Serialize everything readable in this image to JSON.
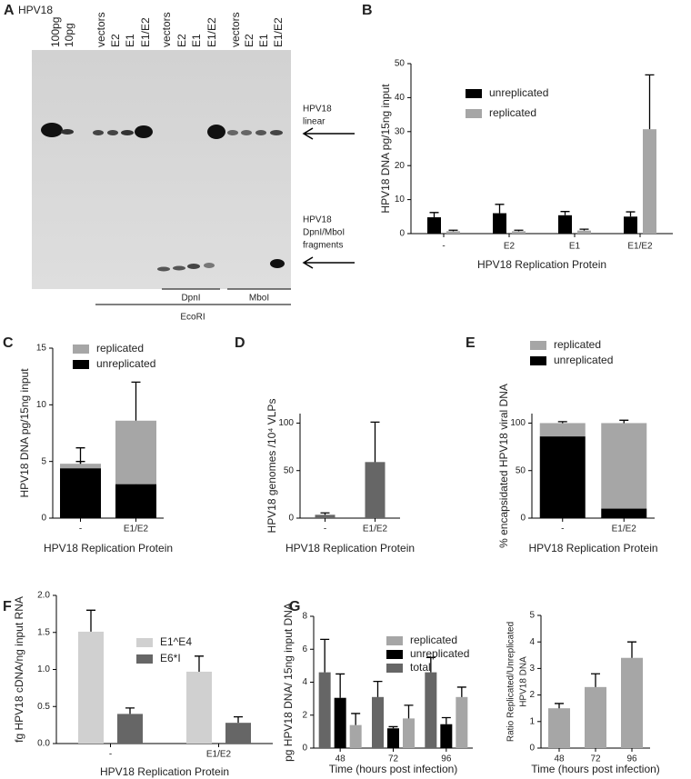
{
  "gel": {
    "panel_label": "A",
    "title": "HPV18",
    "lanes": [
      "100pg",
      "10pg",
      "vectors",
      "E2",
      "E1",
      "E1/E2",
      "vectors",
      "E2",
      "E1",
      "E1/E2",
      "vectors",
      "E2",
      "E1",
      "E1/E2"
    ],
    "digests": [
      "EcoRI",
      "DpnI",
      "MboI"
    ],
    "annotations": [
      [
        "HPV18",
        "linear"
      ],
      [
        "HPV18",
        "DpnI/MboI",
        "fragments"
      ]
    ]
  },
  "chart_data": [
    {
      "panel_label": "B",
      "type": "bar",
      "y_label": "HPV18 DNA pg/15ng input",
      "x_label": "HPV18 Replication Protein",
      "categories": [
        "-",
        "E2",
        "E1",
        "E1/E2"
      ],
      "series": [
        {
          "name": "unreplicated",
          "color": "#000000",
          "values": [
            4.8,
            6.0,
            5.4,
            5.0
          ],
          "errors": [
            1.4,
            2.6,
            1.1,
            1.4
          ]
        },
        {
          "name": "replicated",
          "color": "#a6a6a6",
          "values": [
            0.7,
            0.7,
            0.9,
            30.7
          ],
          "errors": [
            0.3,
            0.3,
            0.4,
            16
          ]
        }
      ],
      "ylim": [
        0,
        50
      ],
      "yticks": [
        0,
        10,
        20,
        30,
        40,
        50
      ]
    },
    {
      "panel_label": "C",
      "type": "bar",
      "stacked": true,
      "legend_reversed": true,
      "y_label": "HPV18 DNA pg/15ng input",
      "x_label": "HPV18 Replication Protein",
      "categories": [
        "-",
        "E1/E2"
      ],
      "series": [
        {
          "name": "unreplicated",
          "color": "#000000",
          "values": [
            4.4,
            3.0
          ],
          "errors": [
            0.6,
            1.1
          ]
        },
        {
          "name": "replicated",
          "color": "#a6a6a6",
          "values": [
            0.4,
            5.6
          ],
          "errors": [
            1.4,
            3.4
          ]
        }
      ],
      "ylim": [
        0,
        15
      ],
      "yticks": [
        0,
        5,
        10,
        15
      ]
    },
    {
      "panel_label": "D",
      "type": "bar",
      "y_label": "HPV18 genomes /10⁴ VLPs",
      "x_label": "HPV18 Replication Protein",
      "categories": [
        "-",
        "E1/E2"
      ],
      "values": [
        3.5,
        59
      ],
      "errors": [
        2,
        42
      ],
      "color": "#666666",
      "ylim": [
        0,
        110
      ],
      "yticks": [
        0,
        50,
        100
      ]
    },
    {
      "panel_label": "E",
      "type": "bar",
      "stacked": true,
      "legend_reversed": true,
      "y_label": "% encapsidated HPV18 viral DNA",
      "x_label": "HPV18 Replication Protein",
      "categories": [
        "-",
        "E1/E2"
      ],
      "series": [
        {
          "name": "unreplicated",
          "color": "#000000",
          "values": [
            86,
            10
          ],
          "errors": [
            2,
            3
          ]
        },
        {
          "name": "replicated",
          "color": "#a6a6a6",
          "values": [
            14,
            90
          ],
          "errors": [
            1.5,
            3
          ]
        }
      ],
      "ylim": [
        0,
        110
      ],
      "yticks": [
        0,
        50,
        100
      ]
    },
    {
      "panel_label": "F",
      "type": "bar",
      "y_label": "fg HPV18 cDNA/ng input RNA",
      "x_label": "HPV18 Replication Protein",
      "categories": [
        "-",
        "E1/E2"
      ],
      "series": [
        {
          "name": "E1^E4",
          "color": "#d0d0d0",
          "values": [
            1.51,
            0.97
          ],
          "errors": [
            0.29,
            0.21
          ]
        },
        {
          "name": "E6*I",
          "color": "#666666",
          "values": [
            0.4,
            0.28
          ],
          "errors": [
            0.08,
            0.08
          ]
        }
      ],
      "ylim": [
        0,
        2
      ],
      "yticks": [
        {
          "value": 0,
          "label": "0.0"
        },
        {
          "value": 0.5,
          "label": "0.5"
        },
        {
          "value": 1,
          "label": "1.0"
        },
        {
          "value": 1.5,
          "label": "1.5"
        },
        {
          "value": 2,
          "label": "2.0"
        }
      ]
    },
    {
      "panel_label": "G",
      "type": "bar",
      "legend_reversed": true,
      "y_label": "pg HPV18 DNA/ 15ng input DNA",
      "x_label": "Time (hours post infection)",
      "categories": [
        "48",
        "72",
        "96"
      ],
      "series": [
        {
          "name": "total",
          "color": "#666666",
          "values": [
            4.6,
            3.1,
            4.6
          ],
          "errors": [
            2.0,
            0.95,
            0.9
          ]
        },
        {
          "name": "unreplicated",
          "color": "#000000",
          "values": [
            3.05,
            1.2,
            1.45
          ],
          "errors": [
            1.45,
            0.1,
            0.4
          ]
        },
        {
          "name": "replicated",
          "color": "#a6a6a6",
          "values": [
            1.4,
            1.8,
            3.1
          ],
          "errors": [
            0.7,
            0.8,
            0.6
          ]
        }
      ],
      "ylim": [
        0,
        8
      ],
      "yticks": [
        0,
        2,
        4,
        6,
        8
      ]
    },
    {
      "type": "bar",
      "y_label": [
        "Ratio Replicated/Unreplicated",
        "HPV18 DNA"
      ],
      "x_label": "Time (hours post infection)",
      "categories": [
        "48",
        "72",
        "96"
      ],
      "values": [
        1.5,
        2.3,
        3.4
      ],
      "errors": [
        0.18,
        0.5,
        0.6
      ],
      "color": "#a6a6a6",
      "ylim": [
        0,
        5
      ],
      "yticks": [
        0,
        1,
        2,
        3,
        4,
        5
      ]
    }
  ]
}
